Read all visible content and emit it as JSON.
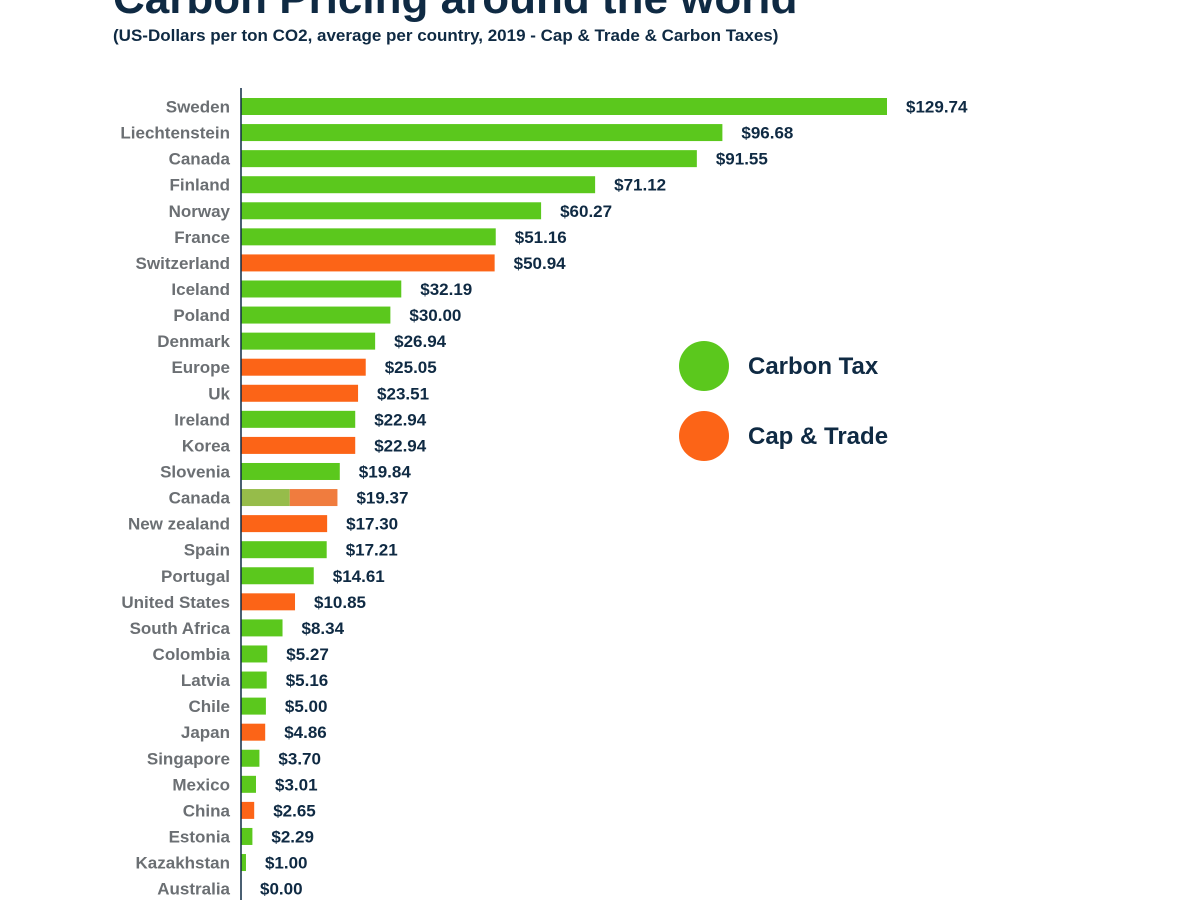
{
  "header": {
    "title": "Carbon Pricing around the world",
    "subtitle": "(US-Dollars per ton CO2, average per country, 2019 - Cap & Trade & Carbon Taxes)"
  },
  "colors": {
    "carbon_tax": "#5bc81d",
    "cap_trade": "#fc6417",
    "mixed_tax": "#96bc4a",
    "mixed_trade": "#f07c3e",
    "axis": "#0f2a43",
    "category_text": "#6b6f73",
    "value_text": "#0f2a43"
  },
  "chart_data": {
    "type": "bar",
    "orientation": "horizontal",
    "title": "Carbon Pricing around the world",
    "subtitle": "(US-Dollars per ton CO2, average per country, 2019 - Cap & Trade & Carbon Taxes)",
    "xlim": [
      0,
      130
    ],
    "grid": false,
    "legend_position": "right",
    "legend": [
      {
        "label": "Carbon Tax",
        "key": "carbon_tax"
      },
      {
        "label": "Cap & Trade",
        "key": "cap_trade"
      }
    ],
    "categories": [
      "Sweden",
      "Liechtenstein",
      "Canada",
      "Finland",
      "Norway",
      "France",
      "Switzerland",
      "Iceland",
      "Poland",
      "Denmark",
      "Europe",
      "Uk",
      "Ireland",
      "Korea",
      "Slovenia",
      "Canada",
      "New zealand",
      "Spain",
      "Portugal",
      "United States",
      "South Africa",
      "Colombia",
      "Latvia",
      "Chile",
      "Japan",
      "Singapore",
      "Mexico",
      "China",
      "Estonia",
      "Kazakhstan",
      "Australia"
    ],
    "values": [
      129.74,
      96.68,
      91.55,
      71.12,
      60.27,
      51.16,
      50.94,
      32.19,
      30.0,
      26.94,
      25.05,
      23.51,
      22.94,
      22.94,
      19.84,
      19.37,
      17.3,
      17.21,
      14.61,
      10.85,
      8.34,
      5.27,
      5.16,
      5.0,
      4.86,
      3.7,
      3.01,
      2.65,
      2.29,
      1.0,
      0.0
    ],
    "value_labels": [
      "$129.74",
      "$96.68",
      "$91.55",
      "$71.12",
      "$60.27",
      "$51.16",
      "$50.94",
      "$32.19",
      "$30.00",
      "$26.94",
      "$25.05",
      "$23.51",
      "$22.94",
      "$22.94",
      "$19.84",
      "$19.37",
      "$17.30",
      "$17.21",
      "$14.61",
      "$10.85",
      "$8.34",
      "$5.27",
      "$5.16",
      "$5.00",
      "$4.86",
      "$3.70",
      "$3.01",
      "$2.65",
      "$2.29",
      "$1.00",
      "$0.00"
    ],
    "types": [
      "carbon_tax",
      "carbon_tax",
      "carbon_tax",
      "carbon_tax",
      "carbon_tax",
      "carbon_tax",
      "cap_trade",
      "carbon_tax",
      "carbon_tax",
      "carbon_tax",
      "cap_trade",
      "cap_trade",
      "carbon_tax",
      "cap_trade",
      "carbon_tax",
      "mixed",
      "cap_trade",
      "carbon_tax",
      "carbon_tax",
      "cap_trade",
      "carbon_tax",
      "carbon_tax",
      "carbon_tax",
      "carbon_tax",
      "cap_trade",
      "carbon_tax",
      "carbon_tax",
      "cap_trade",
      "carbon_tax",
      "carbon_tax",
      "carbon_tax"
    ],
    "mixed_split": [
      9.8,
      9.57
    ]
  }
}
